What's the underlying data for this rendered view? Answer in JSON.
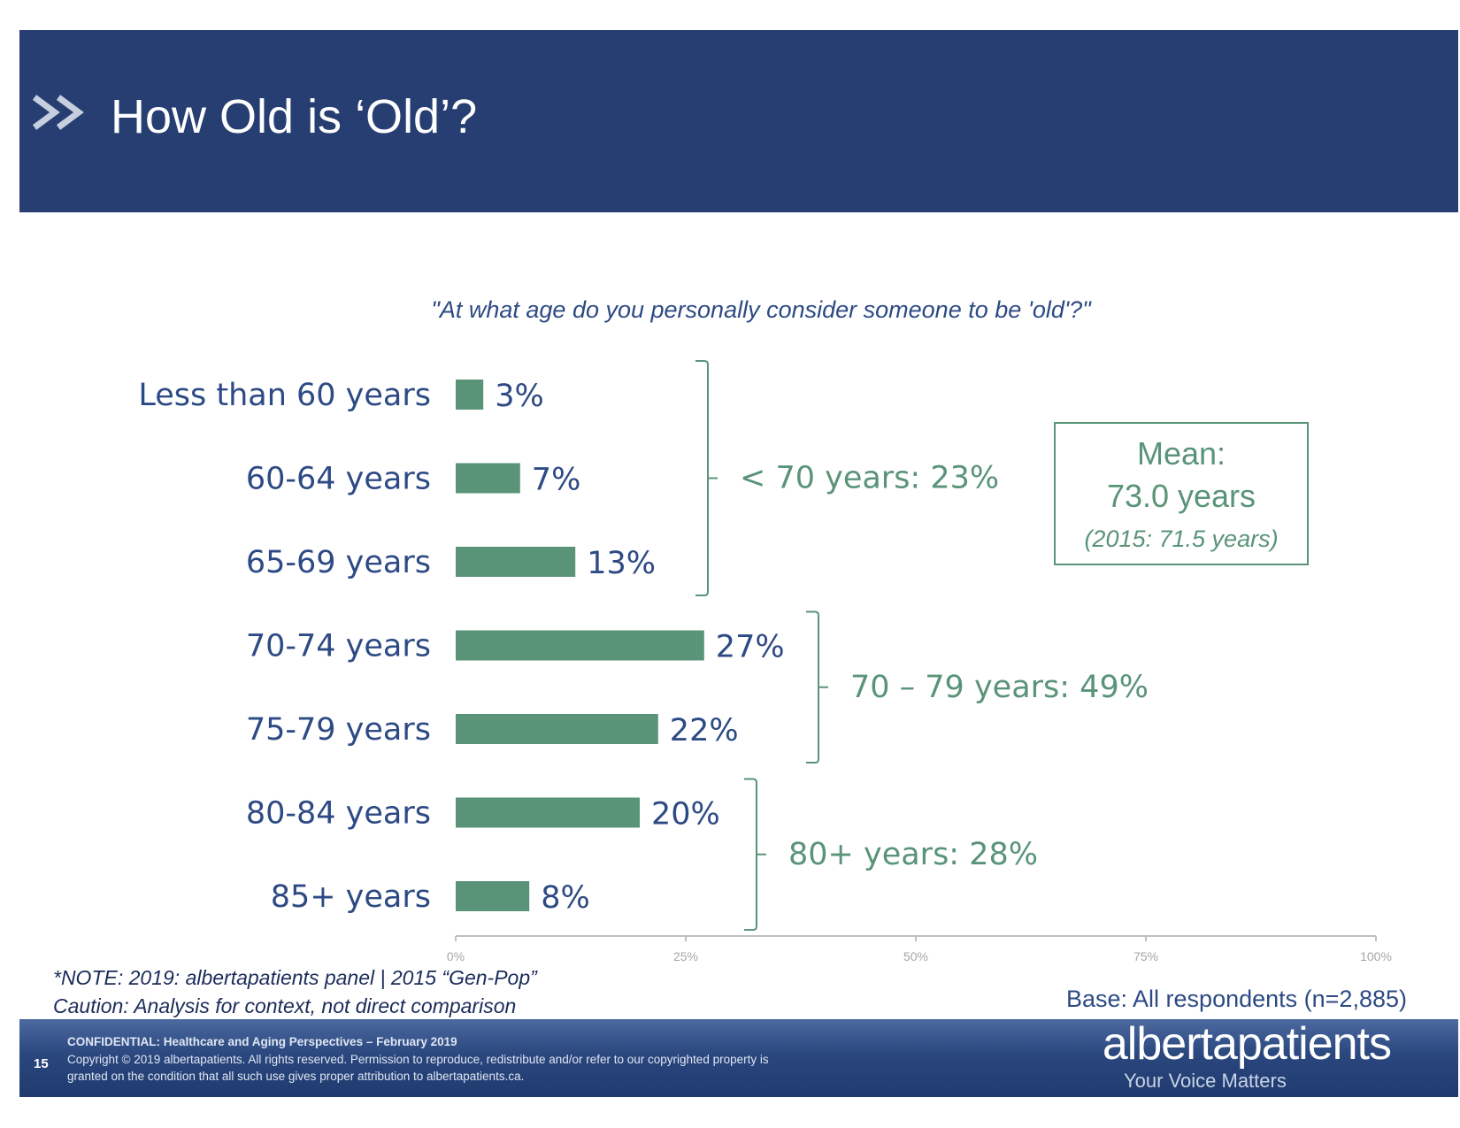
{
  "header": {
    "title": "How Old is ‘Old’?"
  },
  "chart_data": {
    "type": "bar",
    "orientation": "horizontal",
    "title": "\"At what age do you personally consider someone to be 'old'?\"",
    "categories": [
      "Less than 60 years",
      "60-64 years",
      "65-69 years",
      "70-74 years",
      "75-79 years",
      "80-84 years",
      "85+ years"
    ],
    "values": [
      3,
      7,
      13,
      27,
      22,
      20,
      8
    ],
    "value_labels": [
      "3%",
      "7%",
      "13%",
      "27%",
      "22%",
      "20%",
      "8%"
    ],
    "xlim": [
      0,
      100
    ],
    "x_ticks": [
      "0%",
      "25%",
      "50%",
      "75%",
      "100%"
    ],
    "x_tick_values": [
      0,
      25,
      50,
      75,
      100
    ],
    "grid": false,
    "bar_color": "#5a9478",
    "groups": [
      {
        "label": "< 70 years: 23%",
        "from": 0,
        "to": 2
      },
      {
        "label": "70 – 79 years: 49%",
        "from": 3,
        "to": 4
      },
      {
        "label": "80+ years: 28%",
        "from": 5,
        "to": 6
      }
    ]
  },
  "mean_box": {
    "label": "Mean:",
    "value": "73.0 years",
    "previous": "(2015: 71.5 years)"
  },
  "notes": {
    "line1": "*NOTE: 2019: albertapatients panel | 2015 “Gen-Pop”",
    "line2": "Caution: Analysis for context, not direct comparison",
    "base": "Base: All respondents (n=2,885)"
  },
  "footer": {
    "page_number": "15",
    "confidential": "CONFIDENTIAL: Healthcare and Aging Perspectives – February 2019",
    "copyright_line1": "Copyright © 2019 albertapatients. All rights reserved. Permission to reproduce, redistribute and/or refer to our copyrighted property is",
    "copyright_line2": "granted on the condition that all such use gives proper attribution to albertapatients.ca.",
    "brand": "albertapatients",
    "tagline": "Your Voice Matters"
  },
  "colors": {
    "header": "#263e71",
    "label_text": "#2d4a84",
    "bars": "#5a9478"
  }
}
